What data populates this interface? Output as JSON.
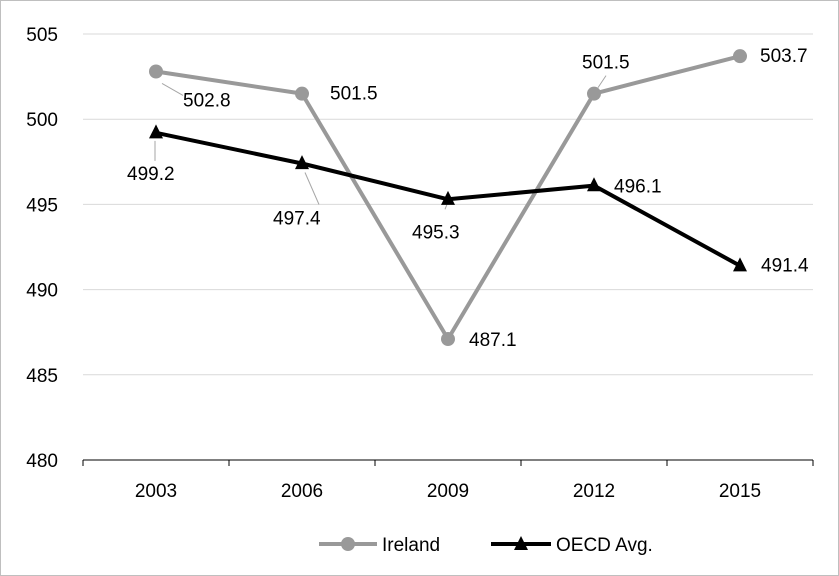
{
  "chart_data": {
    "type": "line",
    "categories": [
      "2003",
      "2006",
      "2009",
      "2012",
      "2015"
    ],
    "ylim": [
      480,
      505
    ],
    "yticks": [
      480,
      485,
      490,
      495,
      500,
      505
    ],
    "grid": true,
    "legend_position": "bottom",
    "series": [
      {
        "name": "Ireland",
        "values": [
          502.8,
          501.5,
          487.1,
          501.5,
          503.7
        ],
        "color": "#999999",
        "marker": "circle",
        "labels": [
          "502.8",
          "501.5",
          "487.1",
          "501.5",
          "503.7"
        ]
      },
      {
        "name": "OECD Avg.",
        "values": [
          499.2,
          497.4,
          495.3,
          496.1,
          491.4
        ],
        "color": "#000000",
        "marker": "triangle",
        "labels": [
          "499.2",
          "497.4",
          "495.3",
          "496.1",
          "491.4"
        ]
      }
    ]
  }
}
